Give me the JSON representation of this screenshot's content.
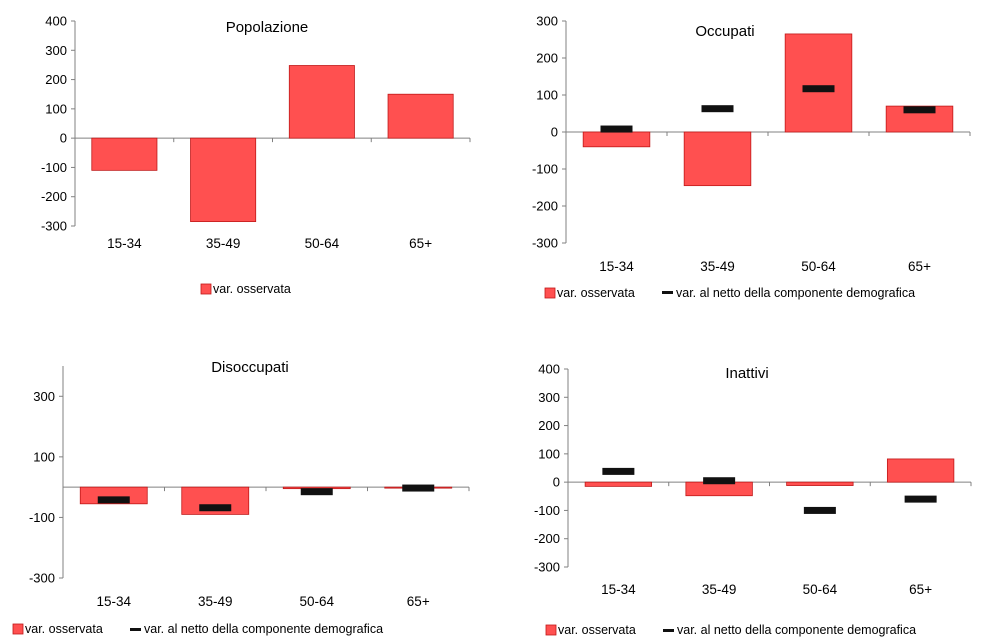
{
  "colors": {
    "bar_fill": "#ff5050",
    "bar_stroke": "#c01818",
    "net_marker": "#111111",
    "axis": "#808080"
  },
  "chart_data": [
    {
      "type": "bar",
      "title": "Popolazione",
      "categories": [
        "15-34",
        "35-49",
        "50-64",
        "65+"
      ],
      "ylim": [
        -300,
        400
      ],
      "yticks": [
        400,
        300,
        200,
        100,
        0,
        -100,
        -200,
        -300
      ],
      "series": [
        {
          "name": "var. osservata",
          "kind": "bar",
          "values": [
            -110,
            -285,
            248,
            150
          ]
        }
      ],
      "legend": [
        "var. osservata"
      ]
    },
    {
      "type": "bar",
      "title": "Occupati",
      "categories": [
        "15-34",
        "35-49",
        "50-64",
        "65+"
      ],
      "ylim": [
        -300,
        300
      ],
      "yticks": [
        300,
        200,
        100,
        0,
        -100,
        -200,
        -300
      ],
      "series": [
        {
          "name": "var. osservata",
          "kind": "bar",
          "values": [
            -40,
            -145,
            265,
            70
          ]
        },
        {
          "name": "var. al netto della componente demografica",
          "kind": "marker",
          "values": [
            8,
            63,
            117,
            60
          ]
        }
      ],
      "legend": [
        "var. osservata",
        "var. al netto della componente demografica"
      ]
    },
    {
      "type": "bar",
      "title": "Disoccupati",
      "categories": [
        "15-34",
        "35-49",
        "50-64",
        "65+"
      ],
      "ylim": [
        -300,
        400
      ],
      "yticks": [
        300,
        100,
        -100,
        -300
      ],
      "series": [
        {
          "name": "var. osservata",
          "kind": "bar",
          "values": [
            -55,
            -90,
            -5,
            -3
          ]
        },
        {
          "name": "var. al netto della componente demografica",
          "kind": "marker",
          "values": [
            -42,
            -68,
            -15,
            -3
          ]
        }
      ],
      "legend": [
        "var. osservata",
        "var. al netto della componente demografica"
      ]
    },
    {
      "type": "bar",
      "title": "Inattivi",
      "categories": [
        "15-34",
        "35-49",
        "50-64",
        "65+"
      ],
      "ylim": [
        -300,
        400
      ],
      "yticks": [
        400,
        300,
        200,
        100,
        0,
        -100,
        -200,
        -300
      ],
      "series": [
        {
          "name": "var. osservata",
          "kind": "bar",
          "values": [
            -15,
            -48,
            -12,
            82
          ]
        },
        {
          "name": "var. al netto della componente demografica",
          "kind": "marker",
          "values": [
            38,
            5,
            -100,
            -60
          ]
        }
      ],
      "legend": [
        "var. osservata",
        "var. al netto della componente demografica"
      ]
    }
  ]
}
